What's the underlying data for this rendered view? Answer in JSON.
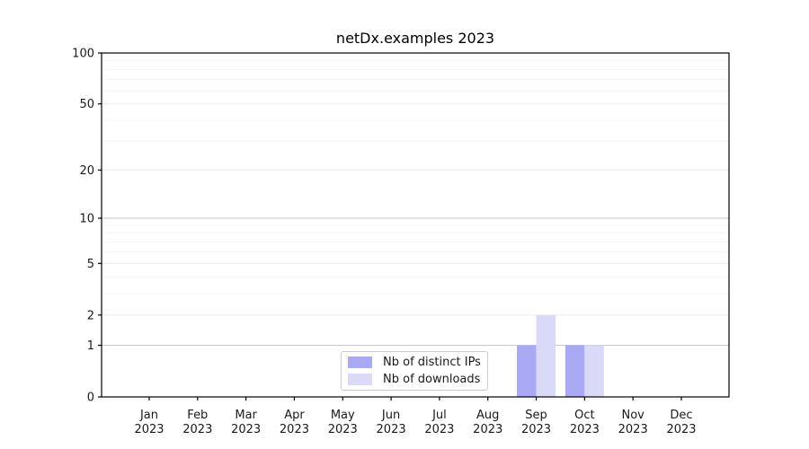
{
  "figure": {
    "background": "#ffffff"
  },
  "chart_data": {
    "type": "bar",
    "title": "netDx.examples 2023",
    "categories": [
      "Jan 2023",
      "Feb 2023",
      "Mar 2023",
      "Apr 2023",
      "May 2023",
      "Jun 2023",
      "Jul 2023",
      "Aug 2023",
      "Sep 2023",
      "Oct 2023",
      "Nov 2023",
      "Dec 2023"
    ],
    "series": [
      {
        "name": "Nb of distinct IPs",
        "color": "#a9a9f4",
        "values": [
          0,
          0,
          0,
          0,
          0,
          0,
          0,
          0,
          1,
          1,
          0,
          0
        ]
      },
      {
        "name": "Nb of downloads",
        "color": "#dadaf8",
        "values": [
          0,
          0,
          0,
          0,
          0,
          0,
          0,
          0,
          2,
          1,
          0,
          0
        ]
      }
    ],
    "xlabel": "",
    "ylabel": "",
    "yscale": "log1p",
    "ylim": [
      0,
      100
    ],
    "yticks_major": [
      0,
      1,
      2,
      5,
      10,
      20,
      50,
      100
    ],
    "yticks_minor": [
      3,
      4,
      6,
      7,
      8,
      9,
      30,
      40,
      60,
      70,
      80,
      90
    ],
    "grid": {
      "shown": true,
      "power_lines": [
        1,
        10,
        100
      ],
      "power_color": "#c6c6c6",
      "major_color": "#ebebeb",
      "minor_color": "#f3f3f3"
    },
    "legend": {
      "position": "lower center inside plot"
    },
    "axis_color": "#000000",
    "text_color": "#1a1a1a"
  }
}
